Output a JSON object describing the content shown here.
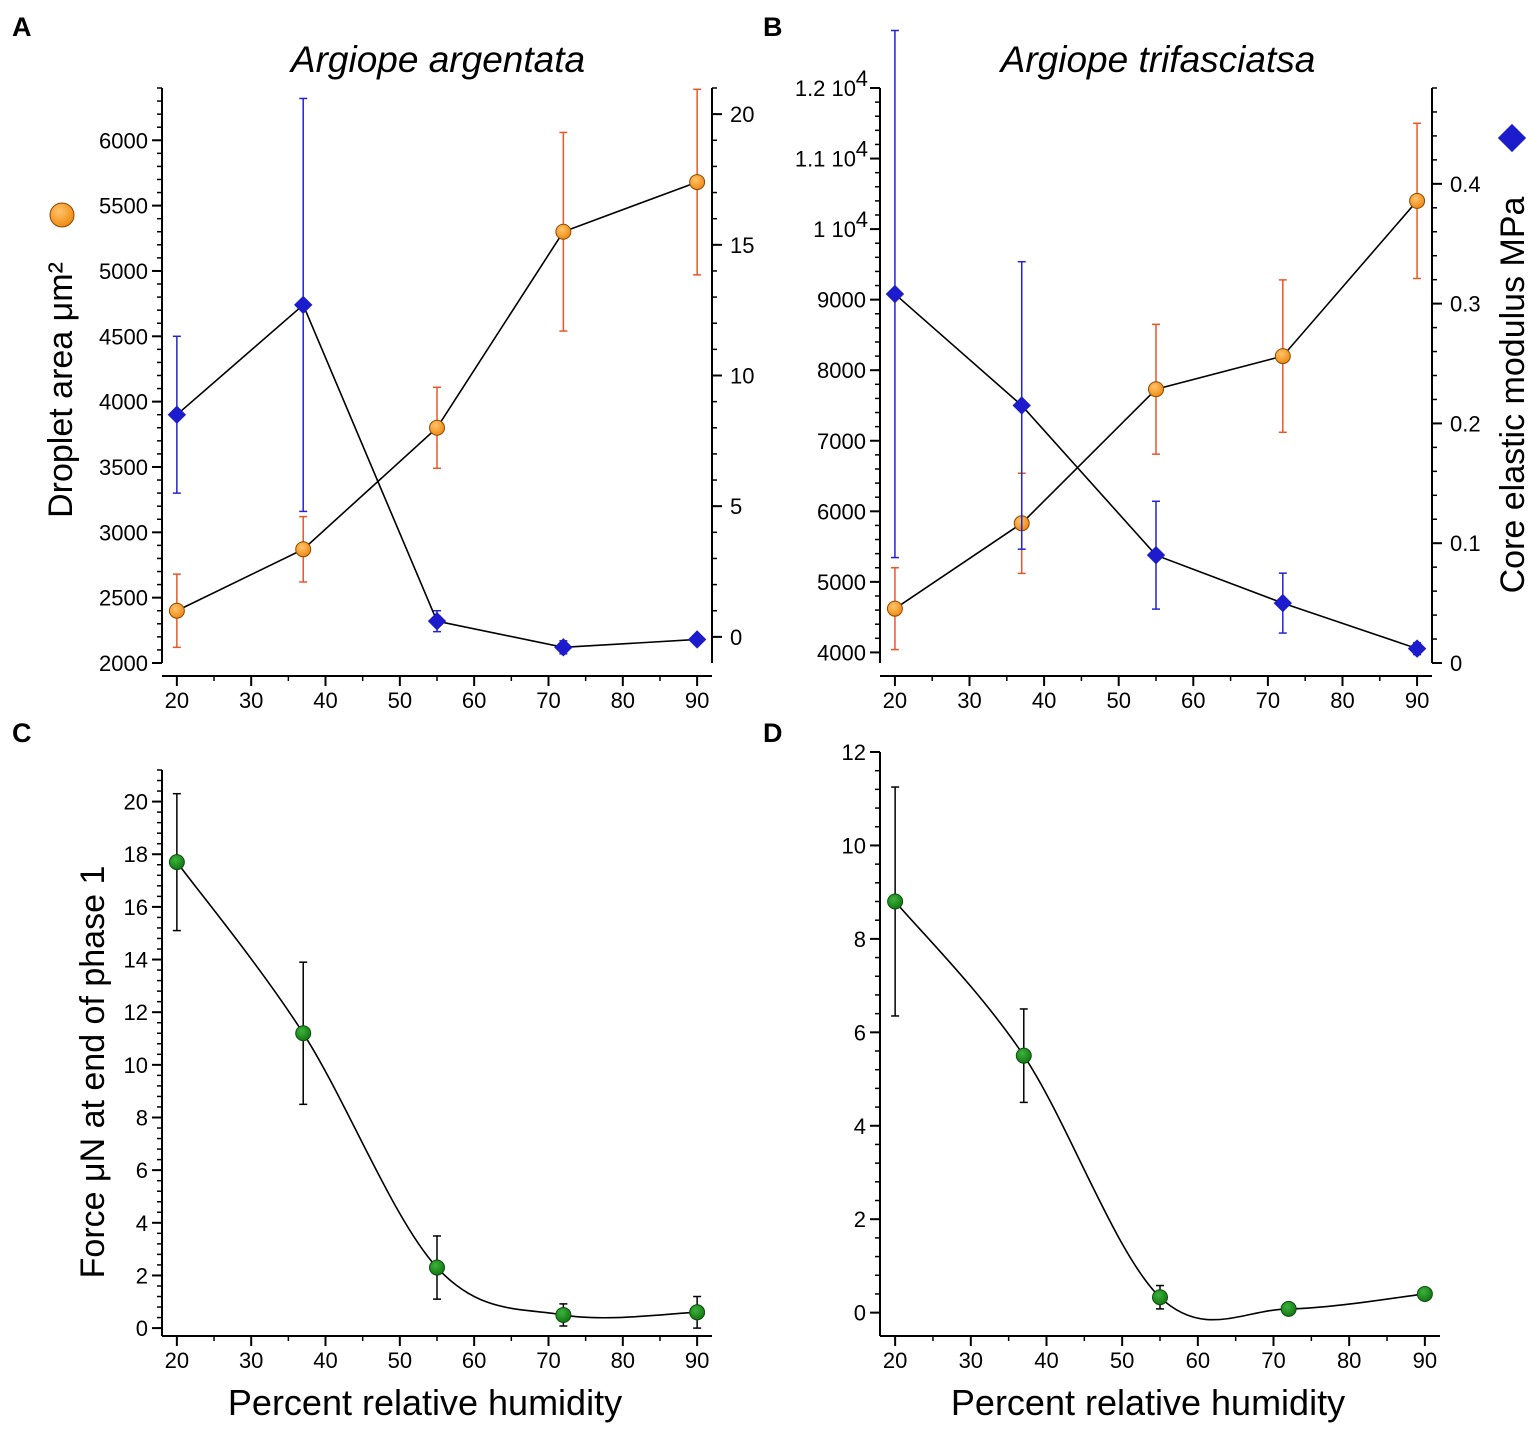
{
  "chart_data": [
    {
      "panel": "A",
      "type": "scatter",
      "title": "Argiope argentata",
      "xlabel": "",
      "ylabel": "Droplet area μm²",
      "y2label": "",
      "x": [
        20,
        37,
        55,
        72,
        90
      ],
      "xlim": [
        18,
        92
      ],
      "xticks": [
        20,
        30,
        40,
        50,
        60,
        70,
        80,
        90
      ],
      "ylim": [
        2000,
        6400
      ],
      "yticks": [
        2000,
        2500,
        3000,
        3500,
        4000,
        4500,
        5000,
        5500,
        6000
      ],
      "y2lim": [
        -1,
        21
      ],
      "y2ticks": [
        0,
        5,
        10,
        15,
        20
      ],
      "series": [
        {
          "name": "Droplet area",
          "axis": "left",
          "marker": "circle",
          "color": "#f7941d",
          "err_color": "#e8572a",
          "values": [
            2400,
            2870,
            3800,
            5300,
            5680
          ],
          "err": [
            280,
            250,
            310,
            760,
            710
          ]
        },
        {
          "name": "Core elastic modulus",
          "axis": "right",
          "marker": "diamond",
          "color": "#1c1ccc",
          "err_color": "#2424cc",
          "values": [
            8.5,
            12.7,
            0.6,
            -0.4,
            -0.1
          ],
          "err": [
            3.0,
            7.9,
            0.4,
            0.25,
            0.1
          ]
        }
      ]
    },
    {
      "panel": "B",
      "type": "scatter",
      "title": "Argiope trifasciatsa",
      "xlabel": "",
      "ylabel": "",
      "y2label": "Core elastic modulus MPa",
      "x": [
        20,
        37,
        55,
        72,
        90
      ],
      "xlim": [
        18,
        92
      ],
      "xticks": [
        20,
        30,
        40,
        50,
        60,
        70,
        80,
        90
      ],
      "ylim": [
        3850,
        12000
      ],
      "yticks": [
        4000,
        5000,
        6000,
        7000,
        8000,
        9000,
        10000,
        11000,
        12000
      ],
      "ytick_labels": [
        "4000",
        "5000",
        "6000",
        "7000",
        "8000",
        "9000",
        "1 10",
        "1.1 10",
        "1.2 10"
      ],
      "ytick_exp": "4",
      "y2lim": [
        0,
        0.48
      ],
      "y2ticks": [
        0,
        0.1,
        0.2,
        0.3,
        0.4
      ],
      "series": [
        {
          "name": "Droplet area",
          "axis": "left",
          "marker": "circle",
          "color": "#f7941d",
          "err_color": "#e8572a",
          "values": [
            4620,
            5830,
            7730,
            8200,
            10400
          ],
          "err": [
            580,
            710,
            920,
            1080,
            1100
          ]
        },
        {
          "name": "Core elastic modulus",
          "axis": "right",
          "marker": "diamond",
          "color": "#1c1ccc",
          "err_color": "#2424cc",
          "values": [
            0.308,
            0.215,
            0.09,
            0.05,
            0.012
          ],
          "err": [
            0.22,
            0.12,
            0.045,
            0.025,
            0.005
          ]
        }
      ]
    },
    {
      "panel": "C",
      "type": "scatter",
      "title": "",
      "xlabel": "Percent relative humidity",
      "ylabel": "Force μN at end of phase 1",
      "x": [
        20,
        37,
        55,
        72,
        90
      ],
      "xlim": [
        18,
        92
      ],
      "xticks": [
        20,
        30,
        40,
        50,
        60,
        70,
        80,
        90
      ],
      "ylim": [
        -0.3,
        21.2
      ],
      "yticks": [
        0,
        2,
        4,
        6,
        8,
        10,
        12,
        14,
        16,
        18,
        20
      ],
      "series": [
        {
          "name": "Force",
          "marker": "circle",
          "color": "#178a17",
          "err_color": "#000000",
          "values": [
            17.7,
            11.2,
            2.3,
            0.5,
            0.6
          ],
          "err": [
            2.6,
            2.7,
            1.2,
            0.42,
            0.6
          ]
        }
      ]
    },
    {
      "panel": "D",
      "type": "scatter",
      "title": "",
      "xlabel": "Percent relative humidity",
      "ylabel": "",
      "x": [
        20,
        37,
        55,
        72,
        90
      ],
      "xlim": [
        18,
        92
      ],
      "xticks": [
        20,
        30,
        40,
        50,
        60,
        70,
        80,
        90
      ],
      "ylim": [
        -0.5,
        12
      ],
      "yticks": [
        0,
        2,
        4,
        6,
        8,
        10,
        12
      ],
      "series": [
        {
          "name": "Force",
          "marker": "circle",
          "color": "#178a17",
          "err_color": "#000000",
          "values": [
            8.8,
            5.5,
            0.33,
            0.08,
            0.4
          ],
          "err": [
            2.45,
            1.0,
            0.25,
            0.05,
            0.05
          ]
        }
      ]
    }
  ]
}
